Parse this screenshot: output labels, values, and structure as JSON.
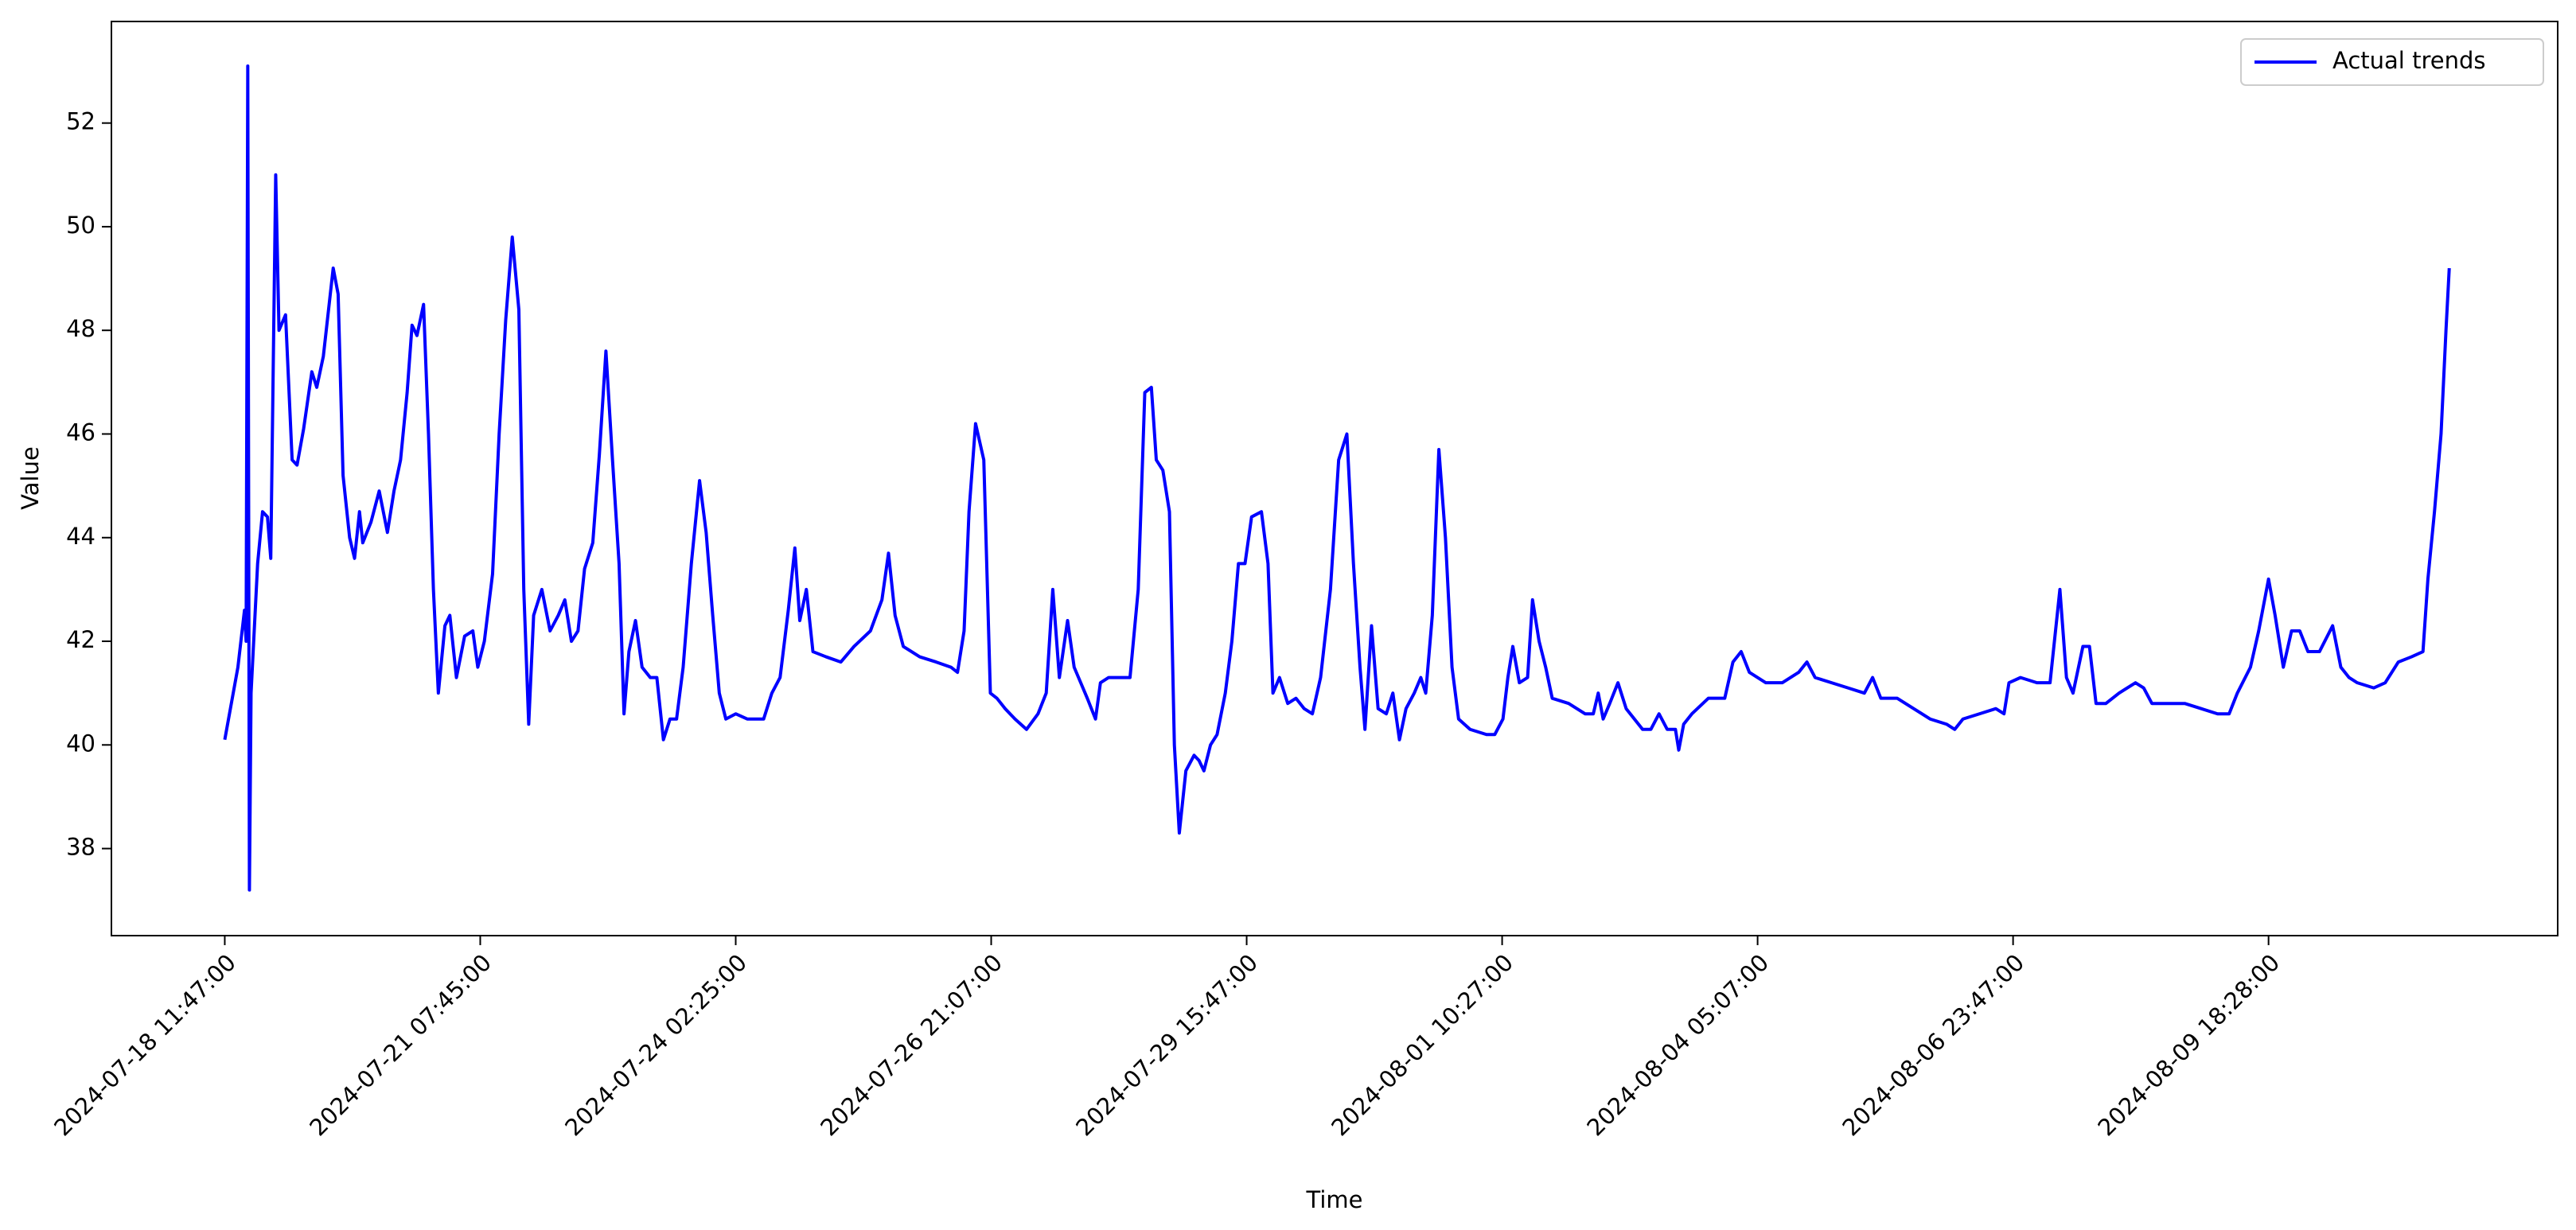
{
  "chart_data": {
    "type": "line",
    "x_label": "Time",
    "y_label": "Value",
    "legend": "upper right",
    "xlim": [
      -69,
      1420
    ],
    "xticks": [
      {
        "value": 0,
        "label": "2024-07-18 11:47:00"
      },
      {
        "value": 155.5,
        "label": "2024-07-21 07:45:00"
      },
      {
        "value": 311,
        "label": "2024-07-24 02:25:00"
      },
      {
        "value": 466.5,
        "label": "2024-07-26 21:07:00"
      },
      {
        "value": 622,
        "label": "2024-07-29 15:47:00"
      },
      {
        "value": 777.5,
        "label": "2024-08-01 10:27:00"
      },
      {
        "value": 933,
        "label": "2024-08-04 05:07:00"
      },
      {
        "value": 1088.5,
        "label": "2024-08-06 23:47:00"
      },
      {
        "value": 1244,
        "label": "2024-08-09 18:28:00"
      }
    ],
    "ylim": [
      36.32,
      53.96
    ],
    "yticks": [
      38,
      40,
      42,
      44,
      46,
      48,
      50,
      52
    ],
    "x": [
      0,
      8,
      12,
      13,
      14,
      15,
      16,
      20,
      23,
      26,
      28,
      31,
      33,
      37,
      41,
      44,
      48,
      53,
      56,
      60,
      66,
      69,
      72,
      76,
      79,
      82,
      84,
      89,
      94,
      99,
      103,
      107,
      111,
      114,
      117,
      121,
      124,
      127,
      130,
      134,
      137,
      141,
      146,
      151,
      154,
      158,
      163,
      167,
      171,
      175,
      179,
      182,
      185,
      188,
      193,
      198,
      203,
      207,
      211,
      215,
      219,
      224,
      228,
      232,
      236,
      240,
      243,
      246,
      250,
      254,
      259,
      263,
      267,
      271,
      275,
      279,
      284,
      289,
      293,
      297,
      301,
      305,
      311,
      318,
      328,
      333,
      338,
      343,
      347,
      350,
      354,
      358,
      366,
      375,
      383,
      393,
      400,
      404,
      408,
      413,
      423,
      433,
      442,
      446,
      450,
      453,
      457,
      462,
      466,
      470,
      475,
      481,
      488,
      495,
      500,
      504,
      508,
      513,
      517,
      521,
      525,
      530,
      533,
      538,
      543,
      551,
      556,
      560,
      564,
      567,
      571,
      575,
      578,
      581,
      585,
      590,
      593,
      596,
      600,
      604,
      609,
      613,
      617,
      621,
      625,
      631,
      635,
      638,
      642,
      647,
      652,
      657,
      662,
      667,
      673,
      678,
      683,
      687,
      691,
      694,
      698,
      702,
      707,
      711,
      715,
      719,
      724,
      728,
      731,
      735,
      739,
      743,
      747,
      751,
      758,
      768,
      773,
      778,
      781,
      784,
      788,
      793,
      796,
      800,
      804,
      808,
      818,
      828,
      833,
      836,
      839,
      843,
      848,
      853,
      858,
      863,
      868,
      873,
      878,
      883,
      885,
      888,
      893,
      903,
      913,
      918,
      923,
      928,
      938,
      948,
      958,
      963,
      968,
      978,
      988,
      998,
      1003,
      1008,
      1018,
      1028,
      1038,
      1048,
      1053,
      1058,
      1068,
      1078,
      1083,
      1086,
      1093,
      1103,
      1111,
      1117,
      1121,
      1125,
      1131,
      1135,
      1139,
      1145,
      1153,
      1163,
      1168,
      1173,
      1183,
      1193,
      1203,
      1213,
      1220,
      1225,
      1233,
      1238,
      1244,
      1248,
      1253,
      1258,
      1263,
      1268,
      1275,
      1283,
      1288,
      1293,
      1298,
      1308,
      1315,
      1323,
      1331,
      1338,
      1341,
      1345,
      1349,
      1352,
      1354
    ],
    "series": [
      {
        "name": "Actual trends",
        "color": "#0000ff",
        "values": [
          40.1,
          41.5,
          42.6,
          42,
          53.1,
          37.2,
          41,
          43.5,
          44.5,
          44.4,
          43.6,
          51,
          48,
          48.3,
          45.5,
          45.4,
          46.1,
          47.2,
          46.9,
          47.5,
          49.2,
          48.7,
          45.2,
          44,
          43.6,
          44.5,
          43.9,
          44.3,
          44.9,
          44.1,
          44.9,
          45.5,
          46.8,
          48.1,
          47.9,
          48.5,
          46,
          43,
          41,
          42.3,
          42.5,
          41.3,
          42.1,
          42.2,
          41.5,
          42,
          43.3,
          46,
          48.2,
          49.8,
          48.4,
          43,
          40.4,
          42.5,
          43,
          42.2,
          42.5,
          42.8,
          42,
          42.2,
          43.4,
          43.9,
          45.6,
          47.6,
          45.5,
          43.5,
          40.6,
          41.8,
          42.4,
          41.5,
          41.3,
          41.3,
          40.1,
          40.5,
          40.5,
          41.5,
          43.5,
          45.1,
          44.1,
          42.5,
          41,
          40.5,
          40.6,
          40.5,
          40.5,
          41,
          41.3,
          42.6,
          43.8,
          42.4,
          43,
          41.8,
          41.7,
          41.6,
          41.9,
          42.2,
          42.8,
          43.7,
          42.5,
          41.9,
          41.7,
          41.6,
          41.5,
          41.4,
          42.2,
          44.5,
          46.2,
          45.5,
          41,
          40.9,
          40.7,
          40.5,
          40.3,
          40.6,
          41,
          43,
          41.3,
          42.4,
          41.5,
          41.2,
          40.9,
          40.5,
          41.2,
          41.3,
          41.3,
          41.3,
          43,
          46.8,
          46.9,
          45.5,
          45.3,
          44.5,
          40,
          38.3,
          39.5,
          39.8,
          39.7,
          39.5,
          40,
          40.2,
          41,
          42,
          43.5,
          43.5,
          44.4,
          44.5,
          43.5,
          41,
          41.3,
          40.8,
          40.9,
          40.7,
          40.6,
          41.3,
          43,
          45.5,
          46,
          43.5,
          41.5,
          40.3,
          42.3,
          40.7,
          40.6,
          41,
          40.1,
          40.7,
          41,
          41.3,
          41,
          42.5,
          45.7,
          44,
          41.5,
          40.5,
          40.3,
          40.2,
          40.2,
          40.5,
          41.3,
          41.9,
          41.2,
          41.3,
          42.8,
          42,
          41.5,
          40.9,
          40.8,
          40.6,
          40.6,
          41,
          40.5,
          40.8,
          41.2,
          40.7,
          40.5,
          40.3,
          40.3,
          40.6,
          40.3,
          40.3,
          39.9,
          40.4,
          40.6,
          40.9,
          40.9,
          41.6,
          41.8,
          41.4,
          41.2,
          41.2,
          41.4,
          41.6,
          41.3,
          41.2,
          41.1,
          41,
          41.3,
          40.9,
          40.9,
          40.7,
          40.5,
          40.4,
          40.3,
          40.5,
          40.6,
          40.7,
          40.6,
          41.2,
          41.3,
          41.2,
          41.2,
          43,
          41.3,
          41,
          41.9,
          41.9,
          40.8,
          40.8,
          41,
          41.2,
          41.1,
          40.8,
          40.8,
          40.8,
          40.7,
          40.6,
          40.6,
          41,
          41.5,
          42.2,
          43.2,
          42.5,
          41.5,
          42.2,
          42.2,
          41.8,
          41.8,
          42.3,
          41.5,
          41.3,
          41.2,
          41.1,
          41.2,
          41.6,
          41.7,
          41.8,
          43.2,
          44.5,
          46,
          48,
          49.2
        ]
      }
    ]
  }
}
